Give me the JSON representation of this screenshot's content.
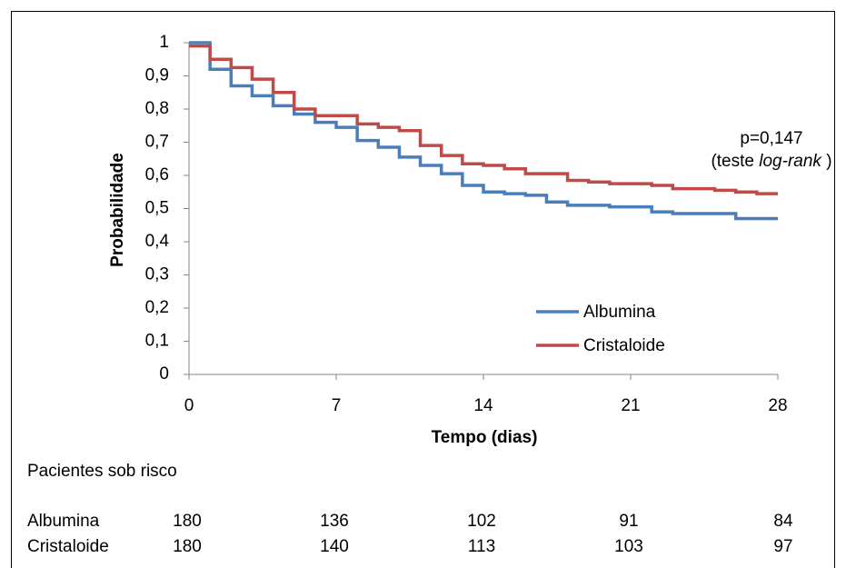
{
  "chart_data": {
    "type": "step",
    "ylabel": "Probabilidade",
    "xlabel": "Tempo (dias)",
    "x": [
      0,
      1,
      2,
      3,
      4,
      5,
      6,
      7,
      8,
      9,
      10,
      11,
      12,
      13,
      14,
      15,
      16,
      17,
      18,
      19,
      20,
      21,
      22,
      23,
      24,
      25,
      26,
      27,
      28
    ],
    "series": [
      {
        "name": "Albumina",
        "color": "#4a7ebb",
        "values": [
          1,
          0.92,
          0.87,
          0.84,
          0.81,
          0.785,
          0.76,
          0.745,
          0.705,
          0.685,
          0.655,
          0.63,
          0.605,
          0.57,
          0.55,
          0.545,
          0.54,
          0.52,
          0.51,
          0.51,
          0.505,
          0.505,
          0.49,
          0.485,
          0.485,
          0.485,
          0.47,
          0.47,
          0.47
        ]
      },
      {
        "name": "Cristaloide",
        "color": "#be4b48",
        "values": [
          0.99,
          0.95,
          0.925,
          0.89,
          0.85,
          0.8,
          0.78,
          0.78,
          0.755,
          0.745,
          0.735,
          0.69,
          0.66,
          0.635,
          0.63,
          0.62,
          0.605,
          0.605,
          0.585,
          0.58,
          0.575,
          0.575,
          0.57,
          0.56,
          0.56,
          0.555,
          0.55,
          0.545,
          0.545
        ]
      }
    ],
    "xlim": [
      0,
      28
    ],
    "xticks": [
      0,
      7,
      14,
      21,
      28
    ],
    "ylim": [
      0,
      1
    ],
    "yticks": [
      0,
      {
        "value": 0.1,
        "label": "0,1"
      },
      {
        "value": 0.2,
        "label": "0,2"
      },
      {
        "value": 0.3,
        "label": "0,3"
      },
      {
        "value": 0.4,
        "label": "0,4"
      },
      {
        "value": 0.5,
        "label": "0,5"
      },
      {
        "value": 0.6,
        "label": "0,6"
      },
      {
        "value": 0.7,
        "label": "0,7"
      },
      {
        "value": 0.8,
        "label": "0,8"
      },
      {
        "value": 0.9,
        "label": "0,9"
      },
      1
    ],
    "annotation": {
      "line1": "p=0,147",
      "line2_start": "(teste ",
      "line2_italic": "log-rank",
      "line2_end": " )"
    },
    "risk_table": {
      "title": "Pacientes sob risco",
      "rows": [
        {
          "name": "Albumina",
          "counts": [
            180,
            136,
            102,
            91,
            84
          ]
        },
        {
          "name": "Cristaloide",
          "counts": [
            180,
            140,
            113,
            103,
            97
          ]
        }
      ]
    }
  }
}
